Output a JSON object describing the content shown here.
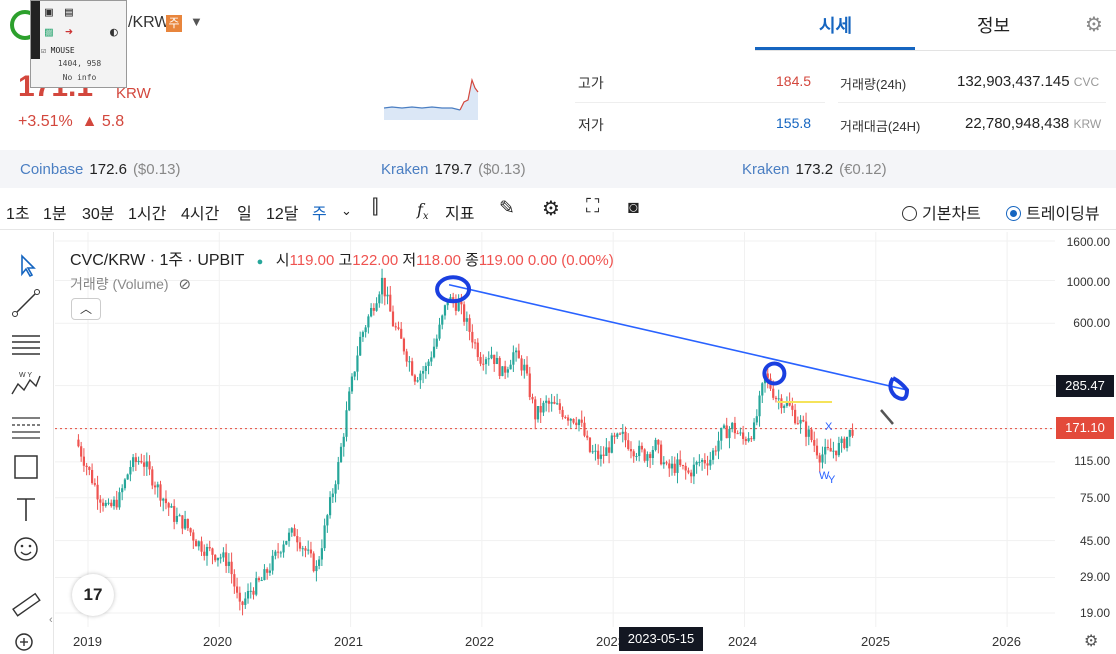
{
  "header": {
    "pair": "/KRW",
    "week_badge": "주",
    "price": "171.1",
    "price_unit": "KRW",
    "change_pct": "+3.51%",
    "change_abs": "▲ 5.8",
    "tabs": [
      "시세",
      "정보"
    ],
    "active_tab": "시세"
  },
  "stats": {
    "high_label": "고가",
    "high_value": "184.5",
    "low_label": "저가",
    "low_value": "155.8",
    "vol_label": "거래량(24h)",
    "vol_value": "132,903,437.145",
    "vol_unit": "CVC",
    "amount_label": "거래대금(24H)",
    "amount_value": "22,780,948,438",
    "amount_unit": "KRW"
  },
  "mouse_tool": {
    "title": "MOUSE",
    "coords": "1404, 958",
    "info": "No info"
  },
  "exchanges": [
    {
      "name": "Coinbase",
      "price": "172.6",
      "diff": "($0.13)"
    },
    {
      "name": "Kraken",
      "price": "179.7",
      "diff": "($0.13)"
    },
    {
      "name": "Kraken",
      "price": "173.2",
      "diff": "(€0.12)"
    }
  ],
  "toolbar": {
    "intervals": [
      "1초",
      "1분",
      "30분",
      "1시간",
      "4시간",
      "일",
      "12달",
      "주"
    ],
    "active_interval": "주",
    "indicators_label": "지표",
    "basic_chart": "기본차트",
    "trading_view": "트레이딩뷰"
  },
  "chart_legend": {
    "symbol": "CVC/KRW · 1주 · UPBIT",
    "open_label": "시",
    "open": "119.00",
    "high_label": "고",
    "high": "122.00",
    "low_label": "저",
    "low": "118.00",
    "close_label": "종",
    "close": "119.00",
    "change": "0.00 (0.00%)",
    "volume_label": "거래량 (Volume)"
  },
  "colors": {
    "up": "#26a69a",
    "down": "#ef5350",
    "accent": "#1565c0",
    "price_red": "#d3473d"
  },
  "chart_data": {
    "type": "candlestick",
    "scale": "log",
    "x_ticks": [
      "2019",
      "2020",
      "2021",
      "2022",
      "2023",
      "2024",
      "2025",
      "2026"
    ],
    "y_ticks": [
      "1600.00",
      "1000.00",
      "600.00",
      "285.47",
      "171.10",
      "115.00",
      "75.00",
      "45.00",
      "29.00",
      "19.00"
    ],
    "current_price_label": "171.10",
    "crosshair_price_label": "285.47",
    "crosshair_date_label": "2023-05-15",
    "annotations": [
      "X",
      "W",
      "Y"
    ],
    "trendline": {
      "from": [
        "2021-10",
        950
      ],
      "to": [
        "2025-04",
        270
      ]
    },
    "approx_closes": [
      [
        "2018-12",
        150
      ],
      [
        "2019-01",
        110
      ],
      [
        "2019-02",
        80
      ],
      [
        "2019-03",
        65
      ],
      [
        "2019-04",
        75
      ],
      [
        "2019-05",
        110
      ],
      [
        "2019-06",
        120
      ],
      [
        "2019-07",
        95
      ],
      [
        "2019-08",
        75
      ],
      [
        "2019-09",
        60
      ],
      [
        "2019-10",
        55
      ],
      [
        "2019-11",
        45
      ],
      [
        "2019-12",
        40
      ],
      [
        "2020-01",
        38
      ],
      [
        "2020-02",
        35
      ],
      [
        "2020-03",
        20
      ],
      [
        "2020-04",
        25
      ],
      [
        "2020-05",
        28
      ],
      [
        "2020-06",
        35
      ],
      [
        "2020-07",
        45
      ],
      [
        "2020-08",
        50
      ],
      [
        "2020-09",
        40
      ],
      [
        "2020-10",
        32
      ],
      [
        "2020-11",
        60
      ],
      [
        "2020-12",
        110
      ],
      [
        "2021-01",
        250
      ],
      [
        "2021-02",
        500
      ],
      [
        "2021-03",
        700
      ],
      [
        "2021-04",
        1000
      ],
      [
        "2021-05",
        600
      ],
      [
        "2021-06",
        450
      ],
      [
        "2021-07",
        320
      ],
      [
        "2021-08",
        350
      ],
      [
        "2021-09",
        500
      ],
      [
        "2021-10",
        800
      ],
      [
        "2021-11",
        750
      ],
      [
        "2021-12",
        550
      ],
      [
        "2022-01",
        400
      ],
      [
        "2022-02",
        420
      ],
      [
        "2022-03",
        330
      ],
      [
        "2022-04",
        420
      ],
      [
        "2022-05",
        350
      ],
      [
        "2022-06",
        200
      ],
      [
        "2022-07",
        230
      ],
      [
        "2022-08",
        220
      ],
      [
        "2022-09",
        200
      ],
      [
        "2022-10",
        190
      ],
      [
        "2022-11",
        130
      ],
      [
        "2022-12",
        120
      ],
      [
        "2023-01",
        145
      ],
      [
        "2023-02",
        155
      ],
      [
        "2023-03",
        135
      ],
      [
        "2023-04",
        125
      ],
      [
        "2023-05",
        140
      ],
      [
        "2023-06",
        105
      ],
      [
        "2023-07",
        110
      ],
      [
        "2023-08",
        100
      ],
      [
        "2023-09",
        115
      ],
      [
        "2023-10",
        120
      ],
      [
        "2023-11",
        160
      ],
      [
        "2023-12",
        175
      ],
      [
        "2024-01",
        150
      ],
      [
        "2024-02",
        170
      ],
      [
        "2024-03",
        320
      ],
      [
        "2024-04",
        250
      ],
      [
        "2024-05",
        230
      ],
      [
        "2024-06",
        190
      ],
      [
        "2024-07",
        160
      ],
      [
        "2024-08",
        125
      ],
      [
        "2024-09",
        130
      ],
      [
        "2024-10",
        140
      ],
      [
        "2024-11",
        171
      ]
    ]
  }
}
